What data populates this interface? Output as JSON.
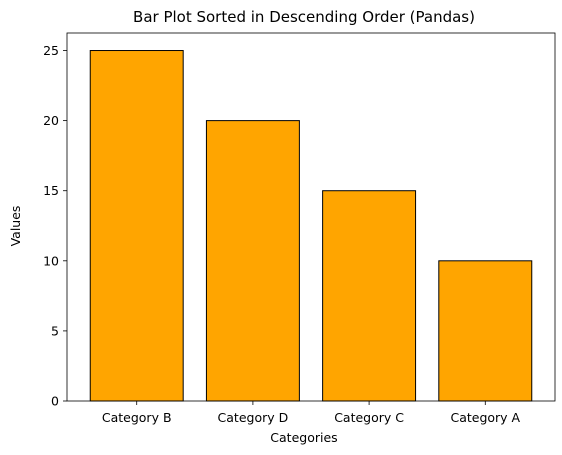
{
  "chart_data": {
    "type": "bar",
    "title": "Bar Plot Sorted in Descending Order (Pandas)",
    "xlabel": "Categories",
    "ylabel": "Values",
    "categories": [
      "Category B",
      "Category D",
      "Category C",
      "Category A"
    ],
    "values": [
      25,
      20,
      15,
      10
    ],
    "ylim": [
      0,
      26.25
    ],
    "yticks": [
      0,
      5,
      10,
      15,
      20,
      25
    ],
    "grid": false,
    "bar_color": "#ffa500",
    "edge_color": "#000000"
  }
}
